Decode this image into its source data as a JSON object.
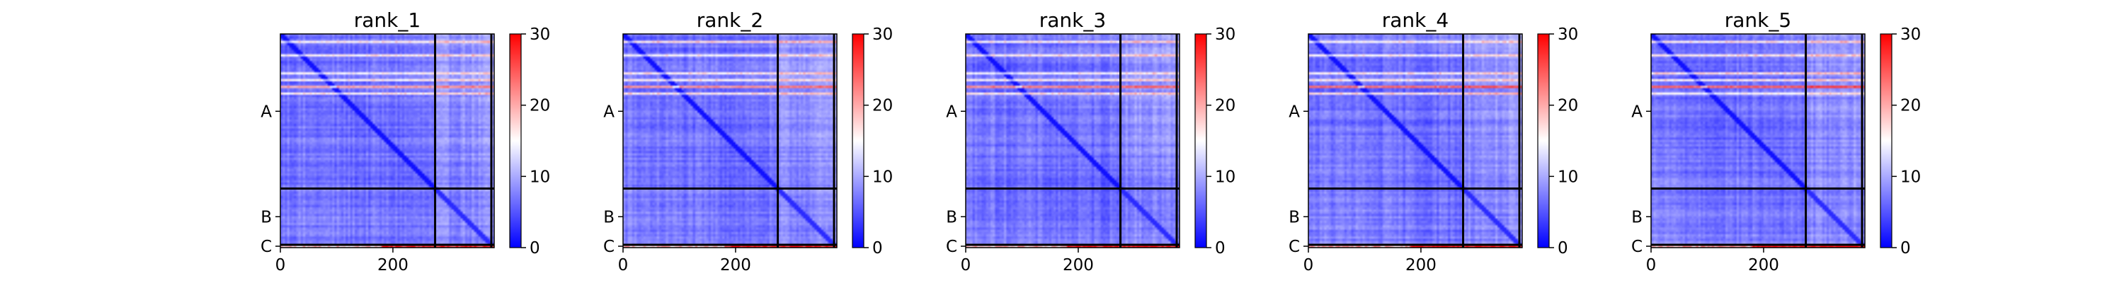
{
  "colors": {
    "colormap": [
      "#0000ff",
      "#ffffff",
      "#ff0000"
    ],
    "boundary_line": "#000000",
    "axis": "#000000"
  },
  "chart_data": [
    {
      "type": "heatmap",
      "title": "rank_1",
      "xlim": [
        0,
        380
      ],
      "x_ticks": [
        0,
        200
      ],
      "y_ticks": [
        "A",
        "B",
        "C"
      ],
      "chain_boundaries": [
        0,
        275,
        375,
        380
      ],
      "clim": [
        0,
        30
      ],
      "colorbar_ticks": [
        0,
        10,
        20,
        30
      ],
      "grid": false
    },
    {
      "type": "heatmap",
      "title": "rank_2",
      "xlim": [
        0,
        380
      ],
      "x_ticks": [
        0,
        200
      ],
      "y_ticks": [
        "A",
        "B",
        "C"
      ],
      "chain_boundaries": [
        0,
        275,
        375,
        380
      ],
      "clim": [
        0,
        30
      ],
      "colorbar_ticks": [
        0,
        10,
        20,
        30
      ],
      "grid": false
    },
    {
      "type": "heatmap",
      "title": "rank_3",
      "xlim": [
        0,
        380
      ],
      "x_ticks": [
        0,
        200
      ],
      "y_ticks": [
        "A",
        "B",
        "C"
      ],
      "chain_boundaries": [
        0,
        275,
        375,
        380
      ],
      "clim": [
        0,
        30
      ],
      "colorbar_ticks": [
        0,
        10,
        20,
        30
      ],
      "grid": false
    },
    {
      "type": "heatmap",
      "title": "rank_4",
      "xlim": [
        0,
        380
      ],
      "x_ticks": [
        0,
        200
      ],
      "y_ticks": [
        "A",
        "B",
        "C"
      ],
      "chain_boundaries": [
        0,
        275,
        375,
        380
      ],
      "clim": [
        0,
        30
      ],
      "colorbar_ticks": [
        0,
        10,
        20,
        30
      ],
      "grid": false
    },
    {
      "type": "heatmap",
      "title": "rank_5",
      "xlim": [
        0,
        380
      ],
      "x_ticks": [
        0,
        200
      ],
      "y_ticks": [
        "A",
        "B",
        "C"
      ],
      "chain_boundaries": [
        0,
        275,
        375,
        380
      ],
      "clim": [
        0,
        30
      ],
      "colorbar_ticks": [
        0,
        10,
        20,
        30
      ],
      "grid": false
    }
  ]
}
